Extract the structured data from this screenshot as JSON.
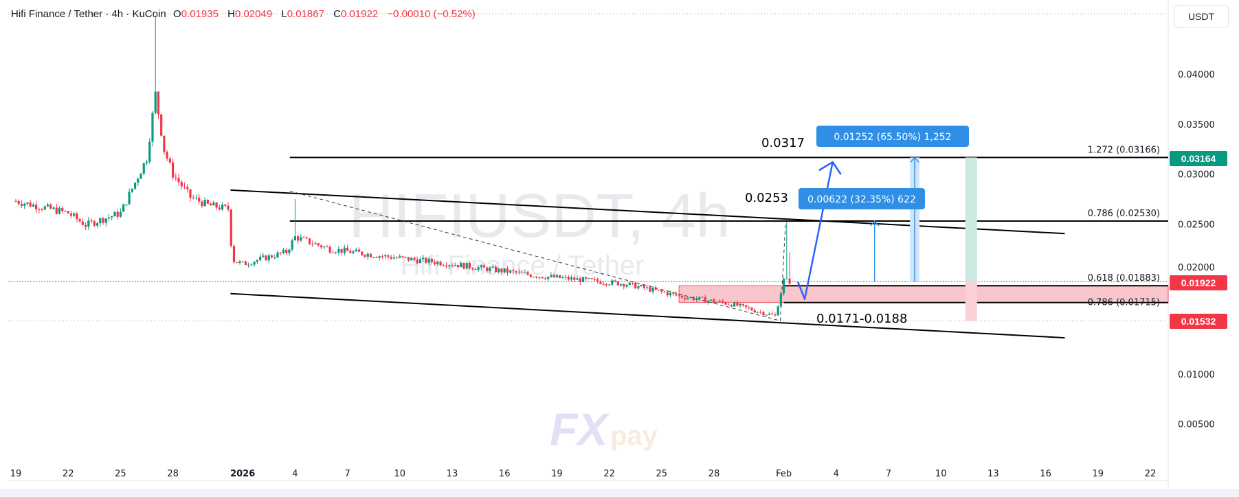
{
  "legend": {
    "symbol": "Hifi Finance / Tether · 4h · KuCoin",
    "open_label": "O",
    "open": "0.01935",
    "high_label": "H",
    "high": "0.02049",
    "low_label": "L",
    "low": "0.01867",
    "close_label": "C",
    "close": "0.01922",
    "change": "−0.00010 (−0.52%)"
  },
  "currency_button": "USDT",
  "watermark": {
    "symbol": "HIFIUSDT, 4h",
    "name": "Hifi Finance / Tether",
    "logo": "FXpay"
  },
  "colors": {
    "up": "#089981",
    "down": "#f23645",
    "accent_blue": "#2962ff",
    "label_blue": "#2f8fe6",
    "zone_pink": "#f9c2c6"
  },
  "chart_data": {
    "type": "candlestick",
    "timeframe": "4h",
    "ylim": [
      0,
      0.045
    ],
    "y_ticks": [
      "0.04000",
      "0.03500",
      "0.03000",
      "0.02500",
      "0.02000",
      "0.01000",
      "0.00500"
    ],
    "x_ticks": [
      "19",
      "22",
      "25",
      "28",
      "2026",
      "4",
      "7",
      "10",
      "13",
      "16",
      "19",
      "22",
      "25",
      "28",
      "Feb",
      "4",
      "7",
      "10",
      "13",
      "16",
      "19",
      "22"
    ],
    "price_path_closes": [
      [
        0,
        0.0273
      ],
      [
        3,
        0.0261
      ],
      [
        4,
        0.0249
      ],
      [
        6,
        0.0261
      ],
      [
        7.5,
        0.0316
      ],
      [
        8,
        0.038
      ],
      [
        8.5,
        0.0324
      ],
      [
        9,
        0.03
      ],
      [
        10,
        0.0277
      ],
      [
        11,
        0.0269
      ],
      [
        12.2,
        0.0265
      ],
      [
        12.4,
        0.0214
      ],
      [
        13,
        0.021
      ],
      [
        15.5,
        0.0222
      ],
      [
        16,
        0.0237
      ],
      [
        18,
        0.0225
      ],
      [
        21,
        0.0218
      ],
      [
        25,
        0.021
      ],
      [
        30,
        0.0198
      ],
      [
        35,
        0.019
      ],
      [
        38,
        0.0178
      ],
      [
        41,
        0.017
      ],
      [
        43.5,
        0.0158
      ],
      [
        44,
        0.0194
      ],
      [
        44.4,
        0.01922
      ]
    ],
    "wick_highs": [
      [
        8,
        0.0458
      ],
      [
        16,
        0.0275
      ],
      [
        44.1,
        0.0252
      ],
      [
        44.3,
        0.0222
      ]
    ],
    "last_price": "0.01922",
    "price_badges": [
      {
        "value": "0.03164",
        "price": 0.03164,
        "color": "#089981"
      },
      {
        "value": "0.01922",
        "price": 0.01922,
        "color": "#f23645"
      },
      {
        "value": "0.01532",
        "price": 0.01532,
        "color": "#f23645"
      }
    ],
    "fib_levels": [
      {
        "label": "1.272 (0.03166)",
        "price": 0.03166
      },
      {
        "label": "0.786 (0.02530)",
        "price": 0.0253
      },
      {
        "label": "0.618 (0.01883)",
        "price": 0.01883
      },
      {
        "label": "0.786 (0.01715)",
        "price": 0.01715
      }
    ],
    "annotations": {
      "target_high": "0.0317",
      "target_mid": "0.0253",
      "support_zone": "0.0171-0.0188",
      "measure_long": "0.01252 (65.50%) 1,252",
      "measure_short": "0.00622 (32.35%) 622"
    },
    "grid": false
  }
}
